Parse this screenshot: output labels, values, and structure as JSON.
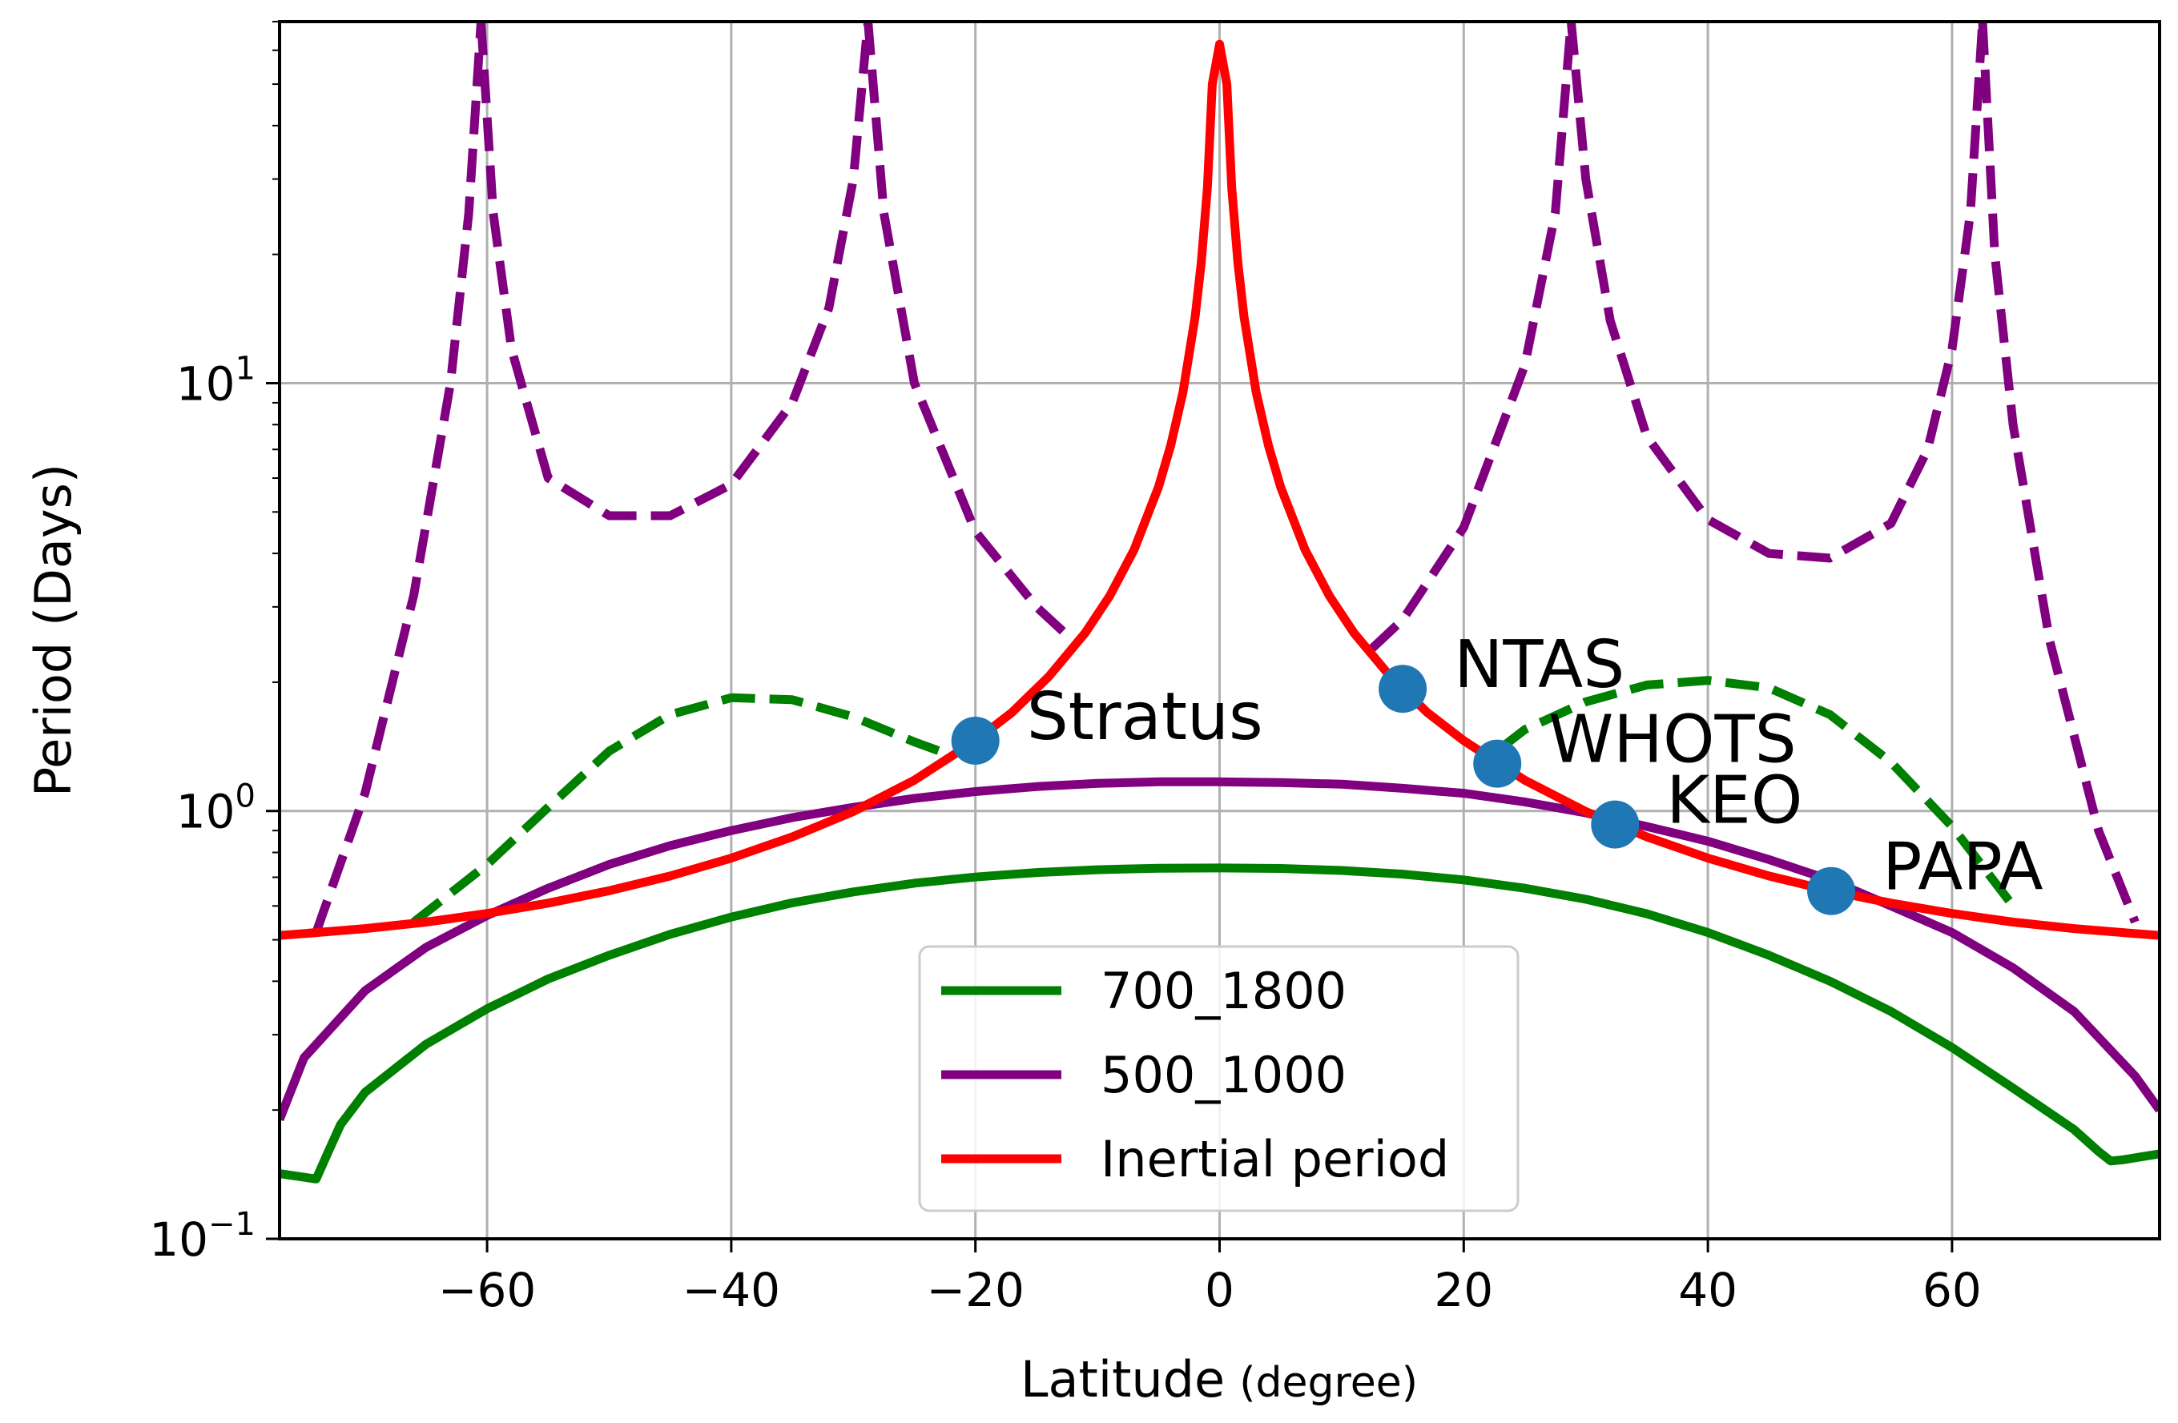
{
  "chart_data": {
    "type": "line",
    "title": "",
    "xlabel": "Latitude",
    "xlabel_unit": "(degree)",
    "ylabel": "Period (Days)",
    "xlim": [
      -77,
      77
    ],
    "ylim": [
      0.1,
      70
    ],
    "yscale": "log",
    "grid": true,
    "xticks": [
      {
        "value": -60,
        "label": "−60"
      },
      {
        "value": -40,
        "label": "−40"
      },
      {
        "value": -20,
        "label": "−20"
      },
      {
        "value": 0,
        "label": "0"
      },
      {
        "value": 20,
        "label": "20"
      },
      {
        "value": 40,
        "label": "40"
      },
      {
        "value": 60,
        "label": "60"
      }
    ],
    "yticks": [
      {
        "value": 0.1,
        "base": "10",
        "exp": "−1"
      },
      {
        "value": 1,
        "base": "10",
        "exp": "0"
      },
      {
        "value": 10,
        "base": "10",
        "exp": "1"
      }
    ],
    "legend": {
      "position": "lower-center",
      "entries": [
        {
          "label": "700_1800",
          "color": "#008000"
        },
        {
          "label": "500_1000",
          "color": "#800080"
        },
        {
          "label": "Inertial period",
          "color": "#ff0000"
        }
      ]
    },
    "series": [
      {
        "name": "700_1800",
        "color": "#008000",
        "style": "solid",
        "x": [
          -77,
          -74,
          -73,
          -72,
          -70,
          -65,
          -60,
          -55,
          -50,
          -45,
          -40,
          -35,
          -30,
          -25,
          -20,
          -15,
          -10,
          -5,
          0,
          5,
          10,
          15,
          20,
          25,
          30,
          35,
          40,
          45,
          50,
          55,
          60,
          65,
          70,
          72,
          73,
          74,
          77
        ],
        "y": [
          0.142,
          0.138,
          0.16,
          0.185,
          0.22,
          0.285,
          0.345,
          0.405,
          0.46,
          0.515,
          0.565,
          0.61,
          0.647,
          0.678,
          0.701,
          0.718,
          0.729,
          0.735,
          0.736,
          0.734,
          0.726,
          0.712,
          0.69,
          0.66,
          0.622,
          0.575,
          0.52,
          0.46,
          0.4,
          0.34,
          0.28,
          0.225,
          0.18,
          0.16,
          0.152,
          0.153,
          0.158
        ]
      },
      {
        "name": "700_1800 (dashed)",
        "color": "#008000",
        "style": "dashed",
        "x": [
          -66,
          -60,
          -55,
          -50,
          -45,
          -40,
          -35,
          -30,
          -25,
          -22
        ],
        "y": [
          0.55,
          0.75,
          1.02,
          1.38,
          1.68,
          1.84,
          1.82,
          1.66,
          1.45,
          1.35
        ]
      },
      {
        "name": "700_1800 (dashed)",
        "color": "#008000",
        "style": "dashed",
        "x": [
          23,
          25,
          30,
          35,
          40,
          45,
          50,
          55,
          60,
          65
        ],
        "y": [
          1.4,
          1.55,
          1.8,
          1.97,
          2.02,
          1.94,
          1.68,
          1.3,
          0.92,
          0.6
        ]
      },
      {
        "name": "500_1000",
        "color": "#800080",
        "style": "solid",
        "x": [
          -77,
          -75,
          -70,
          -65,
          -60,
          -55,
          -50,
          -45,
          -40,
          -35,
          -30,
          -25,
          -20,
          -15,
          -10,
          -5,
          0,
          5,
          10,
          15,
          20,
          25,
          30,
          35,
          40,
          45,
          50,
          55,
          60,
          65,
          70,
          75,
          77
        ],
        "y": [
          0.19,
          0.265,
          0.38,
          0.48,
          0.57,
          0.66,
          0.75,
          0.83,
          0.9,
          0.965,
          1.02,
          1.07,
          1.11,
          1.14,
          1.16,
          1.17,
          1.17,
          1.165,
          1.155,
          1.13,
          1.1,
          1.05,
          0.99,
          0.92,
          0.85,
          0.77,
          0.69,
          0.6,
          0.52,
          0.43,
          0.34,
          0.24,
          0.2
        ]
      },
      {
        "name": "500_1000 (dashed)",
        "color": "#800080",
        "style": "dashed",
        "x": [
          -74,
          -70,
          -66,
          -63,
          -61.5,
          -60.5
        ],
        "y": [
          0.52,
          1.1,
          3.2,
          10,
          25,
          70
        ]
      },
      {
        "name": "500_1000 (dashed)",
        "color": "#800080",
        "style": "dashed",
        "x": [
          -60.5,
          -59.5,
          -58,
          -55,
          -50,
          -45,
          -40,
          -35,
          -32,
          -30,
          -28.8
        ],
        "y": [
          70,
          25,
          12,
          6,
          4.9,
          4.9,
          5.8,
          9,
          15,
          30,
          70
        ]
      },
      {
        "name": "500_1000 (dashed)",
        "color": "#800080",
        "style": "dashed",
        "x": [
          -28.8,
          -27.5,
          -25,
          -20,
          -15,
          -12
        ],
        "y": [
          70,
          25,
          10,
          4.5,
          3,
          2.5
        ]
      },
      {
        "name": "500_1000 (dashed)",
        "color": "#800080",
        "style": "dashed",
        "x": [
          12.5,
          15,
          20,
          25,
          27.5,
          28.8
        ],
        "y": [
          2.4,
          2.8,
          4.6,
          11,
          25,
          70
        ]
      },
      {
        "name": "500_1000 (dashed)",
        "color": "#800080",
        "style": "dashed",
        "x": [
          28.8,
          30,
          32,
          35,
          40,
          45,
          50,
          55,
          58,
          60,
          61.5,
          62.5
        ],
        "y": [
          70,
          30,
          14,
          7.5,
          4.8,
          4,
          3.9,
          4.7,
          7,
          12,
          25,
          70
        ]
      },
      {
        "name": "500_1000 (dashed)",
        "color": "#800080",
        "style": "dashed",
        "x": [
          62.5,
          63.5,
          65,
          68,
          72,
          75
        ],
        "y": [
          70,
          20,
          8,
          2.5,
          0.9,
          0.55
        ]
      },
      {
        "name": "Inertial period",
        "color": "#ff0000",
        "style": "solid",
        "x": [
          -77,
          -75,
          -70,
          -65,
          -60,
          -55,
          -50,
          -45,
          -40,
          -35,
          -30,
          -25,
          -20,
          -17,
          -14,
          -11,
          -9,
          -7,
          -5,
          -4,
          -3,
          -2,
          -1.5,
          -1,
          -0.6,
          0,
          0.6,
          1,
          1.5,
          2,
          3,
          4,
          5,
          7,
          9,
          11,
          14,
          17,
          20,
          25,
          30,
          35,
          40,
          45,
          50,
          55,
          60,
          65,
          70,
          75,
          77
        ],
        "y": [
          0.512,
          0.517,
          0.531,
          0.55,
          0.576,
          0.609,
          0.651,
          0.705,
          0.776,
          0.87,
          0.997,
          1.18,
          1.46,
          1.7,
          2.06,
          2.61,
          3.18,
          4.08,
          5.72,
          7.15,
          9.52,
          14.3,
          19.1,
          28.6,
          50,
          62,
          50,
          28.6,
          19.1,
          14.3,
          9.52,
          7.15,
          5.72,
          4.08,
          3.18,
          2.61,
          2.06,
          1.7,
          1.46,
          1.18,
          0.997,
          0.87,
          0.776,
          0.705,
          0.651,
          0.609,
          0.576,
          0.55,
          0.531,
          0.517,
          0.512
        ]
      }
    ],
    "stations": [
      {
        "name": "Stratus",
        "x": -20,
        "y": 1.46,
        "color": "#1f77b4"
      },
      {
        "name": "NTAS",
        "x": 15,
        "y": 1.93,
        "color": "#1f77b4"
      },
      {
        "name": "WHOTS",
        "x": 22.75,
        "y": 1.29,
        "color": "#1f77b4"
      },
      {
        "name": "KEO",
        "x": 32.4,
        "y": 0.93,
        "color": "#1f77b4"
      },
      {
        "name": "PAPA",
        "x": 50.1,
        "y": 0.65,
        "color": "#1f77b4"
      }
    ]
  }
}
